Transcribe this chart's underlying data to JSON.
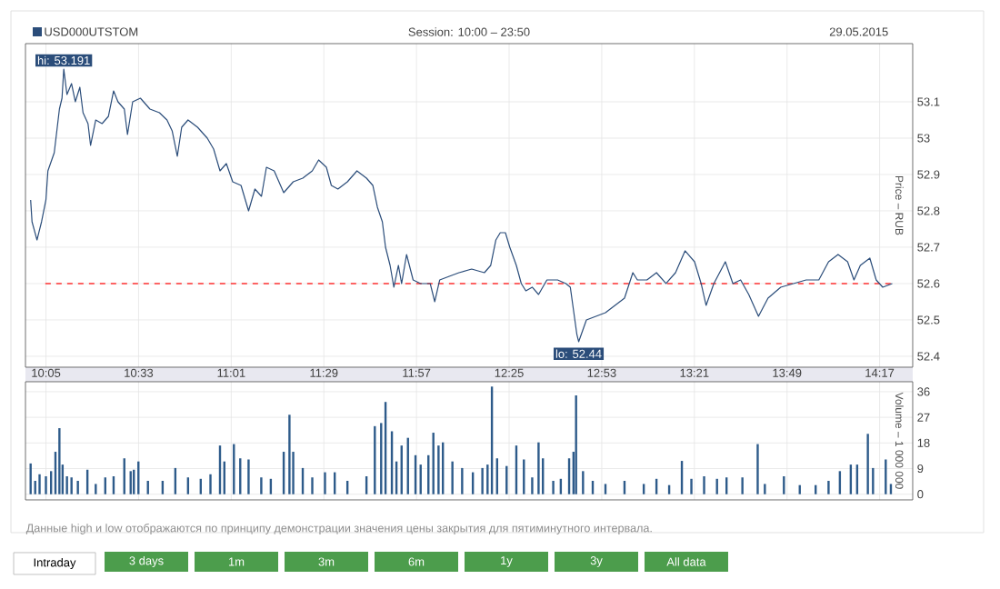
{
  "chart_data": [
    {
      "type": "line",
      "subtitle": "Session: 10:00 – 23:50",
      "ylabel": "Price – RUB",
      "legend": "top left",
      "grid": true,
      "xlim": [
        9.98,
        14.45
      ],
      "ylim": [
        52.37,
        53.26
      ],
      "xticks": [
        {
          "value": 10.0833,
          "label": "10:05"
        },
        {
          "value": 10.55,
          "label": "10:33"
        },
        {
          "value": 11.0167,
          "label": "11:01"
        },
        {
          "value": 11.4833,
          "label": "11:29"
        },
        {
          "value": 11.95,
          "label": "11:57"
        },
        {
          "value": 12.4167,
          "label": "12:25"
        },
        {
          "value": 12.8833,
          "label": "12:53"
        },
        {
          "value": 13.35,
          "label": "13:21"
        },
        {
          "value": 13.8167,
          "label": "13:49"
        },
        {
          "value": 14.2833,
          "label": "14:17"
        }
      ],
      "yticks": [
        52.4,
        52.5,
        52.6,
        52.7,
        52.8,
        52.9,
        53,
        53.1
      ],
      "series": [
        {
          "name": "USD000UTSTOM",
          "color": "#2b4d7a",
          "x": [
            10.006,
            10.013,
            10.038,
            10.061,
            10.083,
            10.093,
            10.125,
            10.151,
            10.164,
            10.173,
            10.189,
            10.212,
            10.231,
            10.254,
            10.27,
            10.295,
            10.308,
            10.334,
            10.366,
            10.398,
            10.424,
            10.446,
            10.478,
            10.494,
            10.52,
            10.559,
            10.607,
            10.655,
            10.693,
            10.719,
            10.745,
            10.767,
            10.799,
            10.847,
            10.896,
            10.928,
            10.96,
            10.992,
            11.024,
            11.066,
            11.104,
            11.136,
            11.169,
            11.194,
            11.233,
            11.281,
            11.329,
            11.377,
            11.425,
            11.457,
            11.496,
            11.521,
            11.554,
            11.602,
            11.65,
            11.698,
            11.73,
            11.753,
            11.778,
            11.794,
            11.817,
            11.836,
            11.859,
            11.875,
            11.9,
            11.933,
            11.971,
            12.019,
            12.042,
            12.067,
            12.115,
            12.164,
            12.228,
            12.292,
            12.324,
            12.35,
            12.372,
            12.398,
            12.42,
            12.453,
            12.478,
            12.501,
            12.533,
            12.565,
            12.607,
            12.661,
            12.703,
            12.725,
            12.758,
            12.767,
            12.806,
            12.854,
            12.902,
            12.95,
            12.998,
            13.04,
            13.063,
            13.111,
            13.159,
            13.207,
            13.255,
            13.303,
            13.351,
            13.384,
            13.409,
            13.448,
            13.506,
            13.544,
            13.583,
            13.624,
            13.673,
            13.721,
            13.785,
            13.849,
            13.913,
            13.977,
            14.026,
            14.074,
            14.122,
            14.154,
            14.186,
            14.234,
            14.266,
            14.299,
            14.347
          ],
          "values": [
            52.83,
            52.77,
            52.72,
            52.77,
            52.83,
            52.91,
            52.96,
            53.08,
            53.11,
            53.19,
            53.12,
            53.15,
            53.1,
            53.14,
            53.07,
            53.04,
            52.98,
            53.05,
            53.04,
            53.06,
            53.13,
            53.1,
            53.08,
            53.01,
            53.1,
            53.11,
            53.08,
            53.07,
            53.05,
            53.02,
            52.95,
            53.03,
            53.05,
            53.03,
            53.0,
            52.97,
            52.91,
            52.93,
            52.88,
            52.87,
            52.8,
            52.86,
            52.84,
            52.92,
            52.91,
            52.85,
            52.88,
            52.89,
            52.91,
            52.94,
            52.92,
            52.87,
            52.86,
            52.88,
            52.91,
            52.89,
            52.87,
            52.81,
            52.77,
            52.7,
            52.65,
            52.59,
            52.65,
            52.6,
            52.68,
            52.61,
            52.6,
            52.6,
            52.55,
            52.61,
            52.62,
            52.63,
            52.64,
            52.63,
            52.65,
            52.72,
            52.74,
            52.74,
            52.7,
            52.65,
            52.6,
            52.58,
            52.59,
            52.57,
            52.61,
            52.61,
            52.6,
            52.59,
            52.46,
            52.44,
            52.5,
            52.51,
            52.52,
            52.54,
            52.56,
            52.63,
            52.61,
            52.61,
            52.63,
            52.6,
            52.63,
            52.69,
            52.66,
            52.6,
            52.54,
            52.6,
            52.66,
            52.6,
            52.61,
            52.57,
            52.51,
            52.56,
            52.59,
            52.6,
            52.61,
            52.61,
            52.66,
            52.68,
            52.66,
            52.61,
            52.65,
            52.67,
            52.61,
            52.59,
            52.6
          ]
        }
      ],
      "ref_lines": [
        {
          "axis": "y",
          "value": 52.6,
          "color": "#ff3333",
          "line_style": "dashed"
        }
      ],
      "annotations": [
        "29.05.2015",
        {
          "text": "hi: 53.191",
          "x": 10.173,
          "y": 53.191
        },
        {
          "text": "lo: 52.44",
          "x": 12.767,
          "y": 52.44
        }
      ]
    },
    {
      "type": "bar",
      "ylabel": "Volume – 1 000 000",
      "grid": true,
      "tick_labels": "y",
      "xlim": [
        9.98,
        14.45
      ],
      "ylim": [
        -2,
        39.5
      ],
      "xticks": [
        {
          "value": 10.0833,
          "label": null
        },
        {
          "value": 10.55,
          "label": null
        },
        {
          "value": 11.0167,
          "label": null
        },
        {
          "value": 11.4833,
          "label": null
        },
        {
          "value": 11.95,
          "label": null
        },
        {
          "value": 12.4167,
          "label": null
        },
        {
          "value": 12.8833,
          "label": null
        },
        {
          "value": 13.35,
          "label": null
        },
        {
          "value": 13.8167,
          "label": null
        },
        {
          "value": 14.2833,
          "label": null
        }
      ],
      "yticks": [
        0,
        9,
        18,
        27,
        36
      ],
      "series": [
        {
          "color": "#2e5b8a",
          "x": [
            10.006,
            10.029,
            10.051,
            10.083,
            10.109,
            10.131,
            10.151,
            10.167,
            10.189,
            10.212,
            10.244,
            10.292,
            10.334,
            10.382,
            10.424,
            10.478,
            10.51,
            10.526,
            10.549,
            10.597,
            10.671,
            10.735,
            10.799,
            10.863,
            10.912,
            10.96,
            10.982,
            11.03,
            11.062,
            11.104,
            11.168,
            11.216,
            11.281,
            11.31,
            11.329,
            11.377,
            11.425,
            11.489,
            11.538,
            11.602,
            11.698,
            11.74,
            11.772,
            11.794,
            11.826,
            11.849,
            11.875,
            11.907,
            11.945,
            11.971,
            12.01,
            12.035,
            12.061,
            12.083,
            12.131,
            12.18,
            12.234,
            12.282,
            12.308,
            12.33,
            12.356,
            12.404,
            12.453,
            12.491,
            12.533,
            12.565,
            12.587,
            12.639,
            12.677,
            12.719,
            12.741,
            12.754,
            12.789,
            12.838,
            12.902,
            12.998,
            13.095,
            13.159,
            13.223,
            13.287,
            13.335,
            13.399,
            13.464,
            13.512,
            13.592,
            13.669,
            13.705,
            13.801,
            13.881,
            13.961,
            14.026,
            14.083,
            14.138,
            14.17,
            14.224,
            14.25,
            14.314,
            14.34
          ],
          "values": [
            10.8,
            4.7,
            7,
            6.3,
            8.1,
            14.9,
            23.2,
            10.4,
            6.3,
            5.9,
            4.7,
            8.6,
            3.6,
            5.9,
            6.3,
            12.6,
            8.1,
            8.6,
            11.5,
            4.7,
            4.7,
            9.2,
            5.9,
            5.4,
            7,
            17.1,
            11.5,
            17.6,
            12.6,
            12.2,
            5.9,
            5.4,
            14.9,
            27.9,
            14.9,
            9.2,
            5.9,
            7.7,
            7.7,
            4.7,
            6.3,
            23.9,
            25,
            32.4,
            22.1,
            11.5,
            17.1,
            19.8,
            13.7,
            10.4,
            13.7,
            21.6,
            17.1,
            18.2,
            11.5,
            9.2,
            7.7,
            9.2,
            10.4,
            37.8,
            12.6,
            9.9,
            17.1,
            12.2,
            5.9,
            18.2,
            12.6,
            4.7,
            5.4,
            12.6,
            14.9,
            34.7,
            8.1,
            4.7,
            3.6,
            4.7,
            3.6,
            5.4,
            3.2,
            11.7,
            5.4,
            6.3,
            5.4,
            5.9,
            5.9,
            17.6,
            3.6,
            6.3,
            3.2,
            3.2,
            4.7,
            8.1,
            10.4,
            10.4,
            21.2,
            9.2,
            12.2,
            3.6
          ]
        }
      ],
      "annotations": [
        "Данные high и low отображаются по принципу демонстрации значения цены закрытия для пятиминутного интервала.",
        "Intraday",
        "3 days",
        "1m",
        "3m",
        "6m",
        "1y",
        "3y",
        "All data"
      ]
    }
  ]
}
